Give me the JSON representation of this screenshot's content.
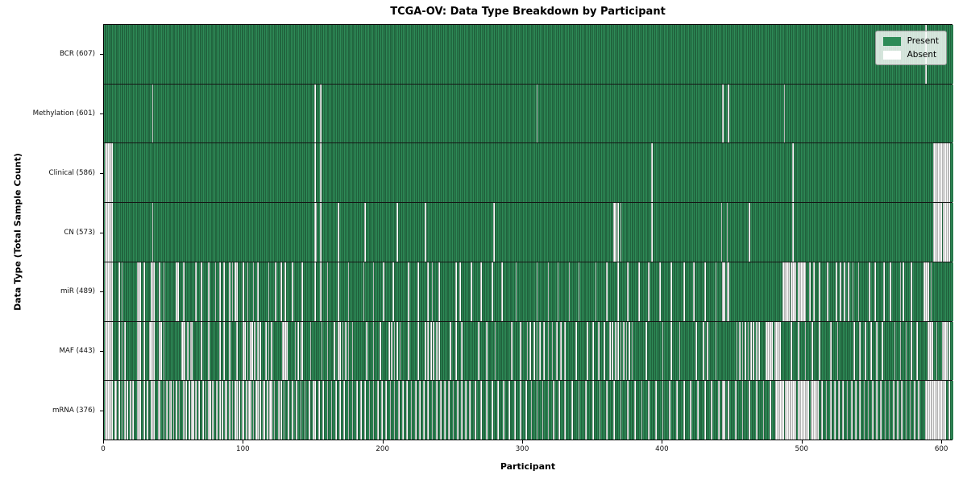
{
  "chart_data": {
    "type": "heatmap",
    "title": "TCGA-OV: Data Type Breakdown by Participant",
    "xlabel": "Participant",
    "ylabel": "Data Type (Total Sample Count)",
    "xlim": [
      0,
      608
    ],
    "x_ticks": [
      0,
      100,
      200,
      300,
      400,
      500,
      600
    ],
    "n_participants": 608,
    "grid": "row-separators",
    "legend_position": "upper-right",
    "colors": {
      "present": "#2e8b57",
      "absent": "#ffffff"
    },
    "legend": [
      {
        "label": "Present",
        "color": "#2e8b57"
      },
      {
        "label": "Absent",
        "color": "#ffffff"
      }
    ],
    "rows": [
      {
        "name": "bcr",
        "label": "BCR (607)",
        "present_count": 607,
        "absent": [
          588
        ]
      },
      {
        "name": "methylation",
        "label": "Methylation (601)",
        "present_count": 601,
        "absent": [
          35,
          151,
          155,
          310,
          443,
          447,
          487
        ]
      },
      {
        "name": "clinical",
        "label": "Clinical (586)",
        "present_count": 586,
        "absent": [
          [
            1,
            6
          ],
          151,
          155,
          392,
          493,
          [
            594,
            605
          ]
        ]
      },
      {
        "name": "cn",
        "label": "CN (573)",
        "present_count": 573,
        "absent": [
          [
            1,
            6
          ],
          35,
          151,
          152,
          155,
          168,
          187,
          210,
          230,
          279,
          365,
          366,
          368,
          370,
          392,
          442,
          446,
          462,
          493,
          [
            594,
            599
          ],
          [
            601,
            605
          ]
        ]
      },
      {
        "name": "mir",
        "label": "miR (489)",
        "present_count": 489,
        "absent": [
          [
            1,
            6
          ],
          11,
          13,
          [
            24,
            26
          ],
          29,
          [
            34,
            36
          ],
          40,
          43,
          52,
          53,
          57,
          66,
          70,
          75,
          80,
          83,
          86,
          90,
          92,
          94,
          95,
          100,
          103,
          107,
          110,
          118,
          123,
          127,
          130,
          135,
          142,
          151,
          155,
          160,
          168,
          175,
          186,
          193,
          200,
          207,
          218,
          225,
          232,
          235,
          240,
          252,
          255,
          263,
          270,
          278,
          285,
          295,
          310,
          318,
          325,
          333,
          340,
          352,
          360,
          368,
          375,
          383,
          390,
          398,
          406,
          415,
          422,
          430,
          438,
          [
            443,
            444
          ],
          446,
          447,
          [
            486,
            490
          ],
          [
            492,
            495
          ],
          [
            497,
            502
          ],
          505,
          508,
          512,
          518,
          524,
          527,
          530,
          533,
          536,
          540,
          548,
          552,
          558,
          563,
          570,
          572,
          578,
          [
            587,
            590
          ],
          592
        ]
      },
      {
        "name": "maf",
        "label": "MAF (443)",
        "present_count": 443,
        "absent": [
          [
            1,
            6
          ],
          11,
          13,
          15,
          [
            24,
            26
          ],
          29,
          [
            33,
            36
          ],
          40,
          41,
          43,
          [
            56,
            58
          ],
          60,
          62,
          63,
          70,
          75,
          83,
          86,
          90,
          95,
          [
            100,
            101
          ],
          103,
          [
            105,
            106
          ],
          108,
          110,
          112,
          116,
          118,
          120,
          [
            128,
            131
          ],
          137,
          139,
          [
            141,
            142
          ],
          148,
          156,
          160,
          165,
          [
            168,
            169
          ],
          171,
          173,
          175,
          178,
          188,
          193,
          198,
          204,
          206,
          208,
          210,
          212,
          218,
          225,
          230,
          232,
          234,
          236,
          238,
          240,
          248,
          252,
          256,
          268,
          274,
          280,
          292,
          298,
          303,
          305,
          308,
          310,
          312,
          315,
          318,
          321,
          324,
          327,
          330,
          338,
          346,
          350,
          354,
          358,
          362,
          364,
          366,
          368,
          370,
          372,
          374,
          376,
          378,
          388,
          400,
          406,
          412,
          424,
          429,
          432,
          438,
          453,
          455,
          457,
          459,
          461,
          463,
          465,
          467,
          469,
          [
            474,
            478
          ],
          [
            480,
            484
          ],
          492,
          497,
          502,
          507,
          512,
          520,
          525,
          537,
          541,
          545,
          549,
          553,
          557,
          566,
          570,
          574,
          578,
          582,
          [
            590,
            593
          ],
          596,
          [
            600,
            603
          ],
          605
        ]
      },
      {
        "name": "mrna",
        "label": "mRNA (376)",
        "present_count": 376,
        "absent": [
          [
            1,
            6
          ],
          8,
          9,
          11,
          13,
          15,
          17,
          19,
          21,
          [
            24,
            26
          ],
          29,
          31,
          [
            34,
            36
          ],
          [
            39,
            40
          ],
          43,
          45,
          47,
          48,
          50,
          52,
          54,
          57,
          59,
          61,
          63,
          64,
          66,
          68,
          71,
          73,
          75,
          76,
          78,
          81,
          83,
          85,
          87,
          88,
          90,
          92,
          94,
          95,
          97,
          99,
          100,
          102,
          104,
          105,
          107,
          109,
          110,
          112,
          114,
          115,
          117,
          119,
          120,
          122,
          125,
          127,
          129,
          132,
          135,
          138,
          141,
          144,
          147,
          [
            150,
            151
          ],
          154,
          157,
          160,
          163,
          166,
          169,
          172,
          175,
          178,
          181,
          184,
          187,
          190,
          193,
          196,
          199,
          202,
          205,
          208,
          211,
          214,
          217,
          220,
          223,
          226,
          229,
          232,
          235,
          238,
          241,
          244,
          247,
          250,
          253,
          256,
          259,
          262,
          266,
          270,
          274,
          278,
          282,
          286,
          290,
          294,
          298,
          302,
          306,
          310,
          314,
          318,
          322,
          326,
          330,
          335,
          340,
          345,
          350,
          355,
          360,
          365,
          370,
          375,
          380,
          385,
          390,
          395,
          400,
          405,
          410,
          415,
          420,
          425,
          430,
          435,
          440,
          [
            443,
            444
          ],
          447,
          452,
          457,
          462,
          467,
          472,
          477,
          [
            481,
            486
          ],
          [
            488,
            495
          ],
          [
            497,
            504
          ],
          [
            506,
            511
          ],
          514,
          517,
          520,
          523,
          526,
          529,
          532,
          535,
          538,
          541,
          544,
          547,
          550,
          553,
          556,
          559,
          562,
          565,
          568,
          571,
          574,
          577,
          580,
          583,
          [
            588,
            602
          ],
          605
        ]
      }
    ]
  }
}
